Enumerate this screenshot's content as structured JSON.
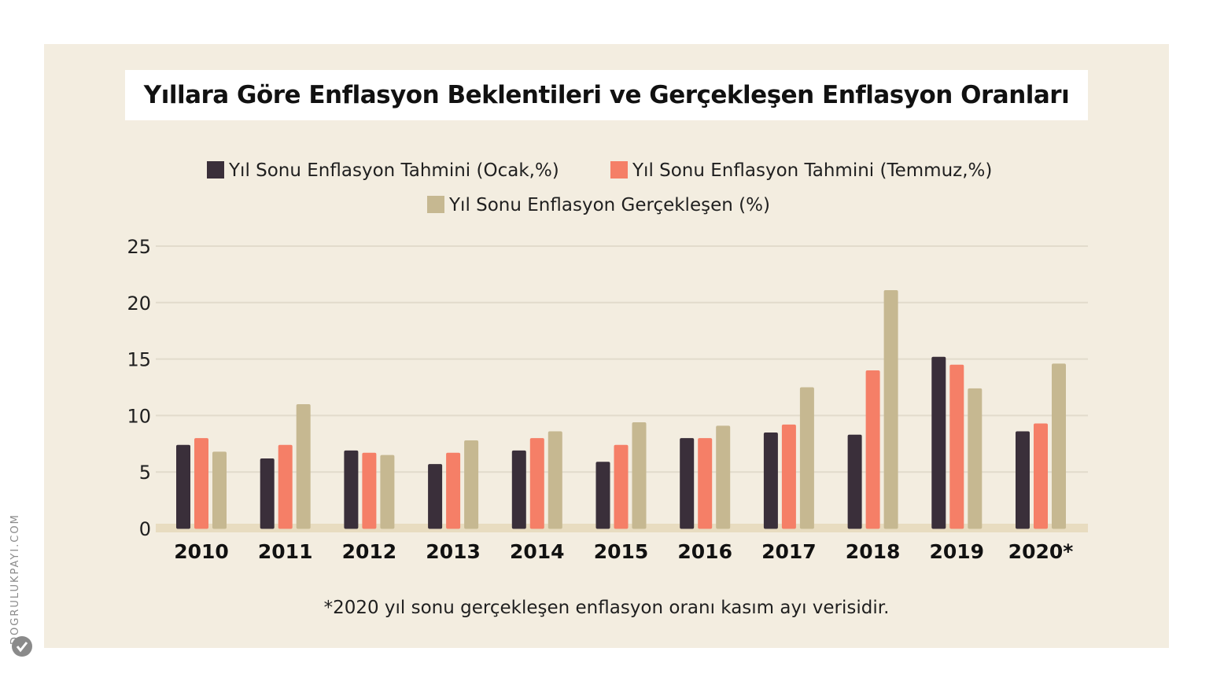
{
  "title": "Yıllara Göre Enflasyon Beklentileri ve Gerçekleşen Enflasyon Oranları",
  "footnote": "*2020 yıl sonu gerçekleşen enflasyon oranı kasım ayı verisidir.",
  "watermark": "DOGRULUKPAYI.COM",
  "colors": {
    "panel": "#f3ede0",
    "grid": "#e2dbcc",
    "baseline": "#e8dcc0"
  },
  "chart_data": {
    "type": "bar",
    "title": "Yıllara Göre Enflasyon Beklentileri ve Gerçekleşen Enflasyon Oranları",
    "xlabel": "",
    "ylabel": "",
    "ylim": [
      0,
      25
    ],
    "yticks": [
      0,
      5,
      10,
      15,
      20,
      25
    ],
    "grid": true,
    "legend_position": "top-center",
    "categories": [
      "2010",
      "2011",
      "2012",
      "2013",
      "2014",
      "2015",
      "2016",
      "2017",
      "2018",
      "2019",
      "2020*"
    ],
    "series": [
      {
        "name": "Yıl Sonu Enflasyon Tahmini (Ocak,%)",
        "color": "#3a2f3a",
        "values": [
          7.4,
          6.2,
          6.9,
          5.7,
          6.9,
          5.9,
          8.0,
          8.5,
          8.3,
          15.2,
          8.6
        ]
      },
      {
        "name": "Yıl Sonu Enflasyon Tahmini (Temmuz,%)",
        "color": "#f57f67",
        "values": [
          8.0,
          7.4,
          6.7,
          6.7,
          8.0,
          7.4,
          8.0,
          9.2,
          14.0,
          14.5,
          9.3
        ]
      },
      {
        "name": "Yıl Sonu Enflasyon Gerçekleşen (%)",
        "color": "#c6b891",
        "values": [
          6.8,
          11.0,
          6.5,
          7.8,
          8.6,
          9.4,
          9.1,
          12.5,
          21.1,
          12.4,
          14.6
        ]
      }
    ]
  }
}
